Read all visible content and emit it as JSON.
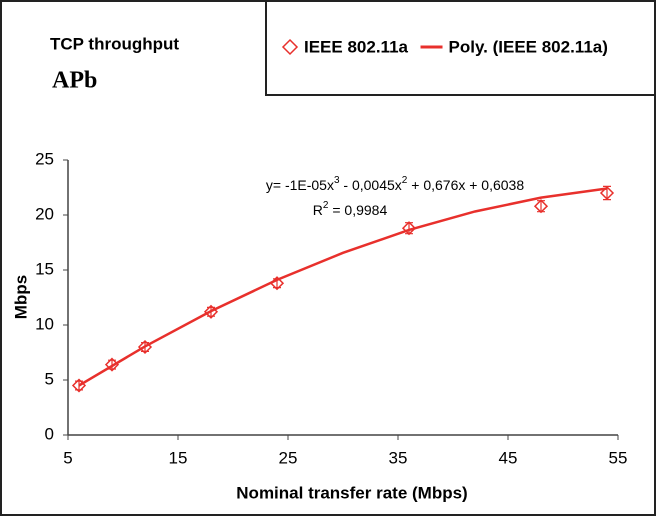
{
  "chart_data": {
    "type": "scatter",
    "title": "TCP throughput",
    "subtitle": "APb",
    "x_label": "Nominal transfer rate (Mbps)",
    "y_label": "Mbps",
    "equation": [
      "y= -1E-05x",
      "3",
      " - 0,0045x",
      "2",
      " + 0,676x + 0,6038"
    ],
    "r_squared": [
      "R",
      "2",
      " = 0,9984"
    ],
    "xlim": [
      5,
      55
    ],
    "xticks": [
      5,
      15,
      25,
      35,
      45,
      55
    ],
    "ylim": [
      0,
      25
    ],
    "yticks": [
      0,
      5,
      10,
      15,
      20,
      25
    ],
    "grid": false,
    "legend": "top-right",
    "series": [
      {
        "name": "IEEE 802.11a",
        "color": "#e8302c",
        "marker": "diamond",
        "x": [
          6,
          9,
          12,
          18,
          24,
          36,
          48,
          54
        ],
        "values": [
          4.5,
          6.4,
          8.0,
          11.2,
          13.8,
          18.8,
          20.8,
          22.0
        ],
        "errors": [
          0.4,
          0.4,
          0.4,
          0.4,
          0.4,
          0.5,
          0.5,
          0.6
        ]
      },
      {
        "name": "Poly. (IEEE 802.11a)",
        "color": "#e8302c",
        "marker": "line",
        "x": [
          6,
          12,
          18,
          24,
          30,
          36,
          42,
          48,
          54
        ],
        "values": [
          4.5,
          8.05,
          11.26,
          14.1,
          16.56,
          18.64,
          20.32,
          21.58,
          22.41
        ]
      }
    ]
  }
}
